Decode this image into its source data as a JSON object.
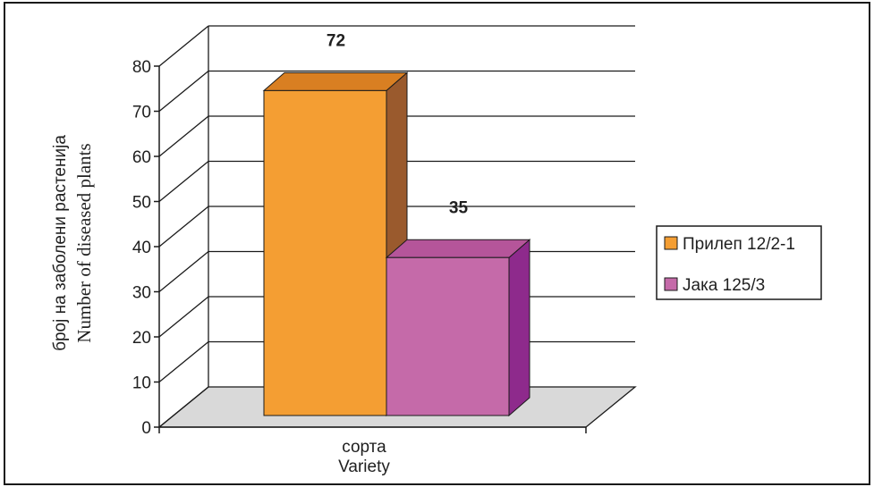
{
  "chart_data": {
    "type": "bar",
    "categories": [
      "сорта"
    ],
    "category_label_line2": "Variety",
    "series": [
      {
        "name": "Прилеп 12/2-1",
        "values": [
          72
        ],
        "color": "#f49e33",
        "side_color": "#9a5a2d",
        "top_color": "#d97f22"
      },
      {
        "name": "Јака 125/3",
        "values": [
          35
        ],
        "color": "#c56aa9",
        "side_color": "#8e2a8c",
        "top_color": "#b5559a"
      }
    ],
    "data_labels": [
      "72",
      "35"
    ],
    "ylabel_line1": "број на заболени растенија",
    "ylabel_line2": "Number of diseased plants",
    "xlabel": "",
    "title": "",
    "ylim": [
      0,
      80
    ],
    "yticks": [
      0,
      10,
      20,
      30,
      40,
      50,
      60,
      70,
      80
    ],
    "grid": true,
    "legend": "right",
    "floor_color": "#d9d9d9",
    "gridline_color": "#1a1a1a"
  }
}
